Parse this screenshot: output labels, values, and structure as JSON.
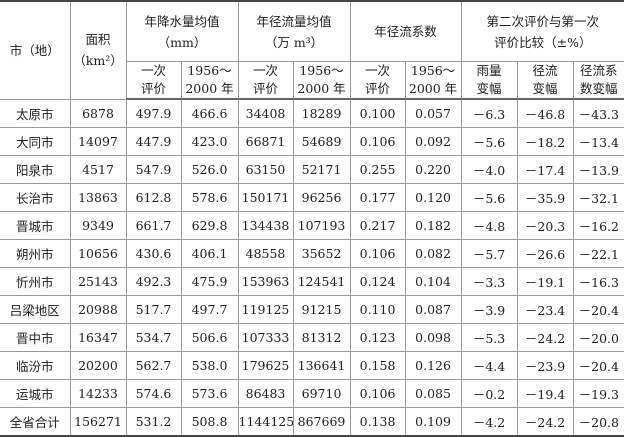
{
  "header": {
    "city": "市（地）",
    "area": "面积",
    "area_unit": "（km²）",
    "precip": "年降水量均值",
    "precip_unit": "（mm）",
    "runoff": "年径流量均值",
    "runoff_unit": "（万 m³）",
    "coef": "年径流系数",
    "compare": "第二次评价与第一次",
    "compare2": "评价比较（±%）",
    "sub": {
      "first_a": "一次",
      "first_b": "评价",
      "period_a": "1956～",
      "period_b": "2000 年",
      "rain_a": "雨量",
      "rain_b": "变幅",
      "run_a": "径流",
      "run_b": "变幅",
      "coefc_a": "径流系",
      "coefc_b": "数变幅"
    }
  },
  "rows": [
    [
      "太原市",
      "6878",
      "497.9",
      "466.6",
      "34408",
      "18289",
      "0.100",
      "0.057",
      "－6.3",
      "－46.8",
      "－43.3"
    ],
    [
      "大同市",
      "14097",
      "447.9",
      "423.0",
      "66871",
      "54689",
      "0.106",
      "0.092",
      "－5.6",
      "－18.2",
      "－13.4"
    ],
    [
      "阳泉市",
      "4517",
      "547.9",
      "526.0",
      "63150",
      "52171",
      "0.255",
      "0.220",
      "－4.0",
      "－17.4",
      "－13.9"
    ],
    [
      "长治市",
      "13863",
      "612.8",
      "578.6",
      "150171",
      "96256",
      "0.177",
      "0.120",
      "－5.6",
      "－35.9",
      "－32.1"
    ],
    [
      "晋城市",
      "9349",
      "661.7",
      "629.8",
      "134438",
      "107193",
      "0.217",
      "0.182",
      "－4.8",
      "－20.3",
      "－16.2"
    ],
    [
      "朔州市",
      "10656",
      "430.6",
      "406.1",
      "48558",
      "35652",
      "0.106",
      "0.082",
      "－5.7",
      "－26.6",
      "－22.1"
    ],
    [
      "忻州市",
      "25143",
      "492.3",
      "475.9",
      "153963",
      "124541",
      "0.124",
      "0.104",
      "－3.3",
      "－19.1",
      "－16.3"
    ],
    [
      "吕梁地区",
      "20988",
      "517.7",
      "497.7",
      "119125",
      "91215",
      "0.110",
      "0.087",
      "－3.9",
      "－23.4",
      "－20.4"
    ],
    [
      "晋中市",
      "16347",
      "534.7",
      "506.6",
      "107333",
      "81312",
      "0.123",
      "0.098",
      "－5.3",
      "－24.2",
      "－20.0"
    ],
    [
      "临汾市",
      "20200",
      "562.7",
      "538.0",
      "179625",
      "136641",
      "0.158",
      "0.126",
      "－4.4",
      "－23.9",
      "－20.4"
    ],
    [
      "运城市",
      "14233",
      "574.6",
      "573.6",
      "86483",
      "69710",
      "0.106",
      "0.085",
      "－0.2",
      "－19.4",
      "－19.3"
    ],
    [
      "全省合计",
      "156271",
      "531.2",
      "508.8",
      "1144125",
      "867669",
      "0.138",
      "0.109",
      "－4.2",
      "－24.2",
      "－20.8"
    ]
  ]
}
